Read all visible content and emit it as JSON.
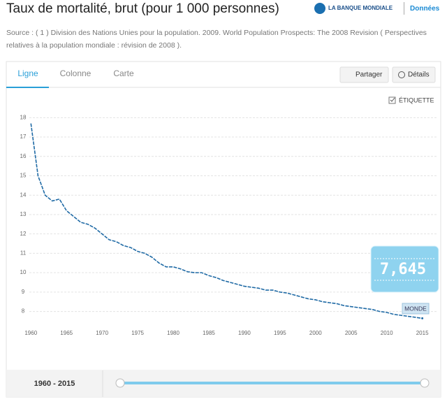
{
  "header": {
    "title": "Taux de mortalité, brut (pour 1 000 personnes)",
    "brand": "LA BANQUE MONDIALE",
    "link": "Données"
  },
  "source": "Source : ( 1 ) Division des Nations Unies pour la population. 2009. World Population Prospects: The 2008 Revision ( Perspectives relatives à la population mondiale : révision de 2008 ).",
  "tabs": [
    "Ligne",
    "Colonne",
    "Carte"
  ],
  "buttons": [
    "Partager",
    "Détails"
  ],
  "checkbox": "ÉTIQUETTE",
  "range_label": "1960 - 2015",
  "chart_data": {
    "type": "line",
    "x": [
      1960,
      1961,
      1962,
      1963,
      1964,
      1965,
      1966,
      1967,
      1968,
      1969,
      1970,
      1971,
      1972,
      1973,
      1974,
      1975,
      1976,
      1977,
      1978,
      1979,
      1980,
      1981,
      1982,
      1983,
      1984,
      1985,
      1986,
      1987,
      1988,
      1989,
      1990,
      1991,
      1992,
      1993,
      1994,
      1995,
      1996,
      1997,
      1998,
      1999,
      2000,
      2001,
      2002,
      2003,
      2004,
      2005,
      2006,
      2007,
      2008,
      2009,
      2010,
      2011,
      2012,
      2013,
      2014,
      2015
    ],
    "series": [
      {
        "name": "MONDE",
        "color": "#1f6aa5",
        "values": [
          17.7,
          15.0,
          14.0,
          13.7,
          13.8,
          13.2,
          12.9,
          12.6,
          12.5,
          12.3,
          12.0,
          11.7,
          11.6,
          11.4,
          11.3,
          11.1,
          11.0,
          10.8,
          10.5,
          10.3,
          10.3,
          10.2,
          10.05,
          10.0,
          10.0,
          9.85,
          9.75,
          9.6,
          9.5,
          9.4,
          9.3,
          9.25,
          9.2,
          9.1,
          9.1,
          9.0,
          8.95,
          8.85,
          8.75,
          8.65,
          8.6,
          8.5,
          8.45,
          8.4,
          8.3,
          8.25,
          8.2,
          8.15,
          8.1,
          8.0,
          7.95,
          7.85,
          7.8,
          7.75,
          7.7,
          7.645
        ]
      }
    ],
    "highlight": {
      "label": "7,645"
    },
    "xlim": [
      1958.6,
      2017
    ],
    "ylim": [
      7.3,
      18.3
    ],
    "xticks": [
      1960,
      1965,
      1970,
      1975,
      1980,
      1985,
      1990,
      1995,
      2000,
      2005,
      2010,
      2015
    ],
    "yticks": [
      8,
      9,
      10,
      11,
      12,
      13,
      14,
      15,
      16,
      17,
      18
    ],
    "grid": true
  }
}
